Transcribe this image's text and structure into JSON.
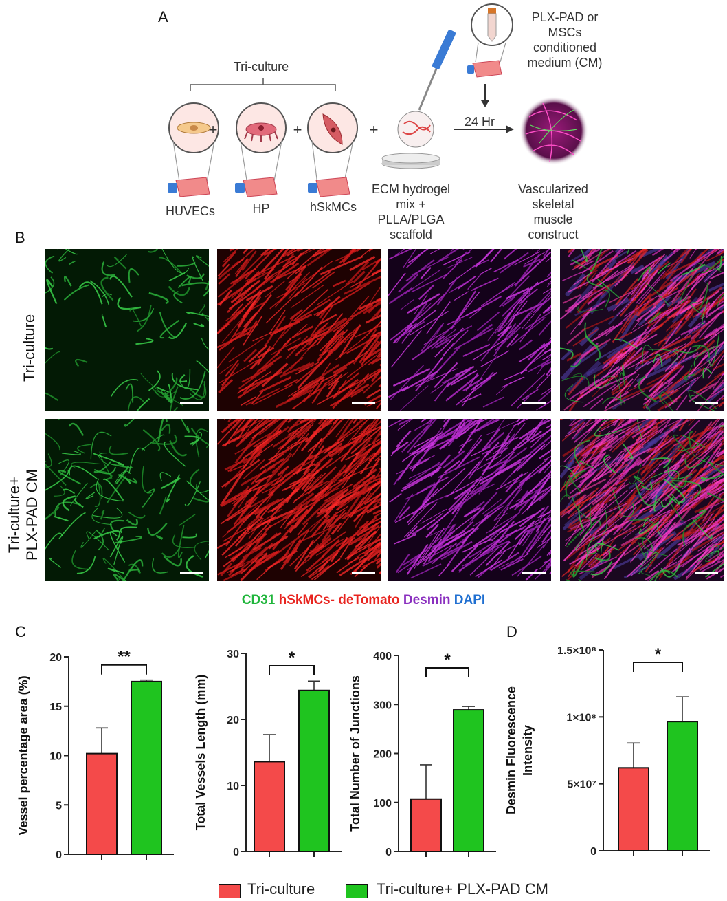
{
  "panels": {
    "a": "A",
    "b": "B",
    "c": "C",
    "d": "D"
  },
  "schematic": {
    "triculture_label": "Tri-culture",
    "cells": [
      "HUVECs",
      "HP",
      "hSkMCs"
    ],
    "plus": "+",
    "ecm_label": [
      "ECM hydrogel",
      "mix +",
      "PLLA/PLGA",
      "scaffold"
    ],
    "cm_label": [
      "PLX-PAD or",
      "MSCs",
      "conditioned",
      "medium (CM)"
    ],
    "time_label": "24 Hr",
    "construct_label": [
      "Vascularized",
      "skeletal",
      "muscle",
      "construct"
    ]
  },
  "micrographs": {
    "rows": [
      {
        "label": [
          "Tri-culture"
        ]
      },
      {
        "label": [
          "Tri-culture+",
          "PLX-PAD CM"
        ]
      }
    ],
    "columns": [
      "green",
      "red",
      "magenta",
      "merge"
    ]
  },
  "stain_legend": [
    {
      "text": "CD31",
      "color": "#1fb53b"
    },
    {
      "text": " hSkMCs- deTomato",
      "color": "#e8241f"
    },
    {
      "text": " Desmin",
      "color": "#8a2fbf"
    },
    {
      "text": " DAPI",
      "color": "#1f6fd1"
    }
  ],
  "colors": {
    "triculture": "#f44a4a",
    "plx": "#1fc41f"
  },
  "chart_data": [
    {
      "type": "bar",
      "ylabel": "Vessel percentage area (%)",
      "ylim": [
        0,
        20
      ],
      "yticks": [
        "0",
        "5",
        "10",
        "15",
        "20"
      ],
      "series": [
        {
          "name": "Tri-culture",
          "values": [
            10.2
          ],
          "error": [
            2.6
          ]
        },
        {
          "name": "Tri-culture+ PLX-PAD CM",
          "values": [
            17.5
          ],
          "error": [
            0.15
          ]
        }
      ],
      "significance": "**"
    },
    {
      "type": "bar",
      "ylabel": "Total Vessels Length (mm)",
      "ylim": [
        0,
        30
      ],
      "yticks": [
        "0",
        "10",
        "20",
        "30"
      ],
      "series": [
        {
          "name": "Tri-culture",
          "values": [
            13.6
          ],
          "error": [
            4.1
          ]
        },
        {
          "name": "Tri-culture+ PLX-PAD CM",
          "values": [
            24.4
          ],
          "error": [
            1.4
          ]
        }
      ],
      "significance": "*"
    },
    {
      "type": "bar",
      "ylabel": "Total Number of Junctions",
      "ylim": [
        0,
        400
      ],
      "yticks": [
        "0",
        "100",
        "200",
        "300",
        "400"
      ],
      "series": [
        {
          "name": "Tri-culture",
          "values": [
            107
          ],
          "error": [
            70
          ]
        },
        {
          "name": "Tri-culture+ PLX-PAD CM",
          "values": [
            289
          ],
          "error": [
            7
          ]
        }
      ],
      "significance": "*"
    },
    {
      "type": "bar",
      "ylabel": "Desmin Fluorescence Intensity",
      "ylim": [
        0,
        150000000
      ],
      "yticks": [
        "0",
        "5×10⁷",
        "1×10⁸",
        "1.5×10⁸"
      ],
      "series": [
        {
          "name": "Tri-culture",
          "values": [
            62000000
          ],
          "error": [
            18500000
          ]
        },
        {
          "name": "Tri-culture+ PLX-PAD CM",
          "values": [
            96500000
          ],
          "error": [
            18500000
          ]
        }
      ],
      "significance": "*"
    }
  ],
  "legend": [
    {
      "label": "Tri-culture",
      "color": "#f44a4a"
    },
    {
      "label": "Tri-culture+ PLX-PAD CM",
      "color": "#1fc41f"
    }
  ]
}
